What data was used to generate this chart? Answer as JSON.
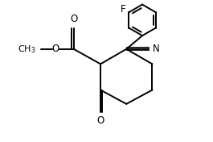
{
  "background": "#ffffff",
  "line_color": "#000000",
  "line_width": 1.4,
  "fig_width": 2.65,
  "fig_height": 1.76,
  "dpi": 100,
  "xlim": [
    0,
    10
  ],
  "ylim": [
    0,
    7
  ]
}
